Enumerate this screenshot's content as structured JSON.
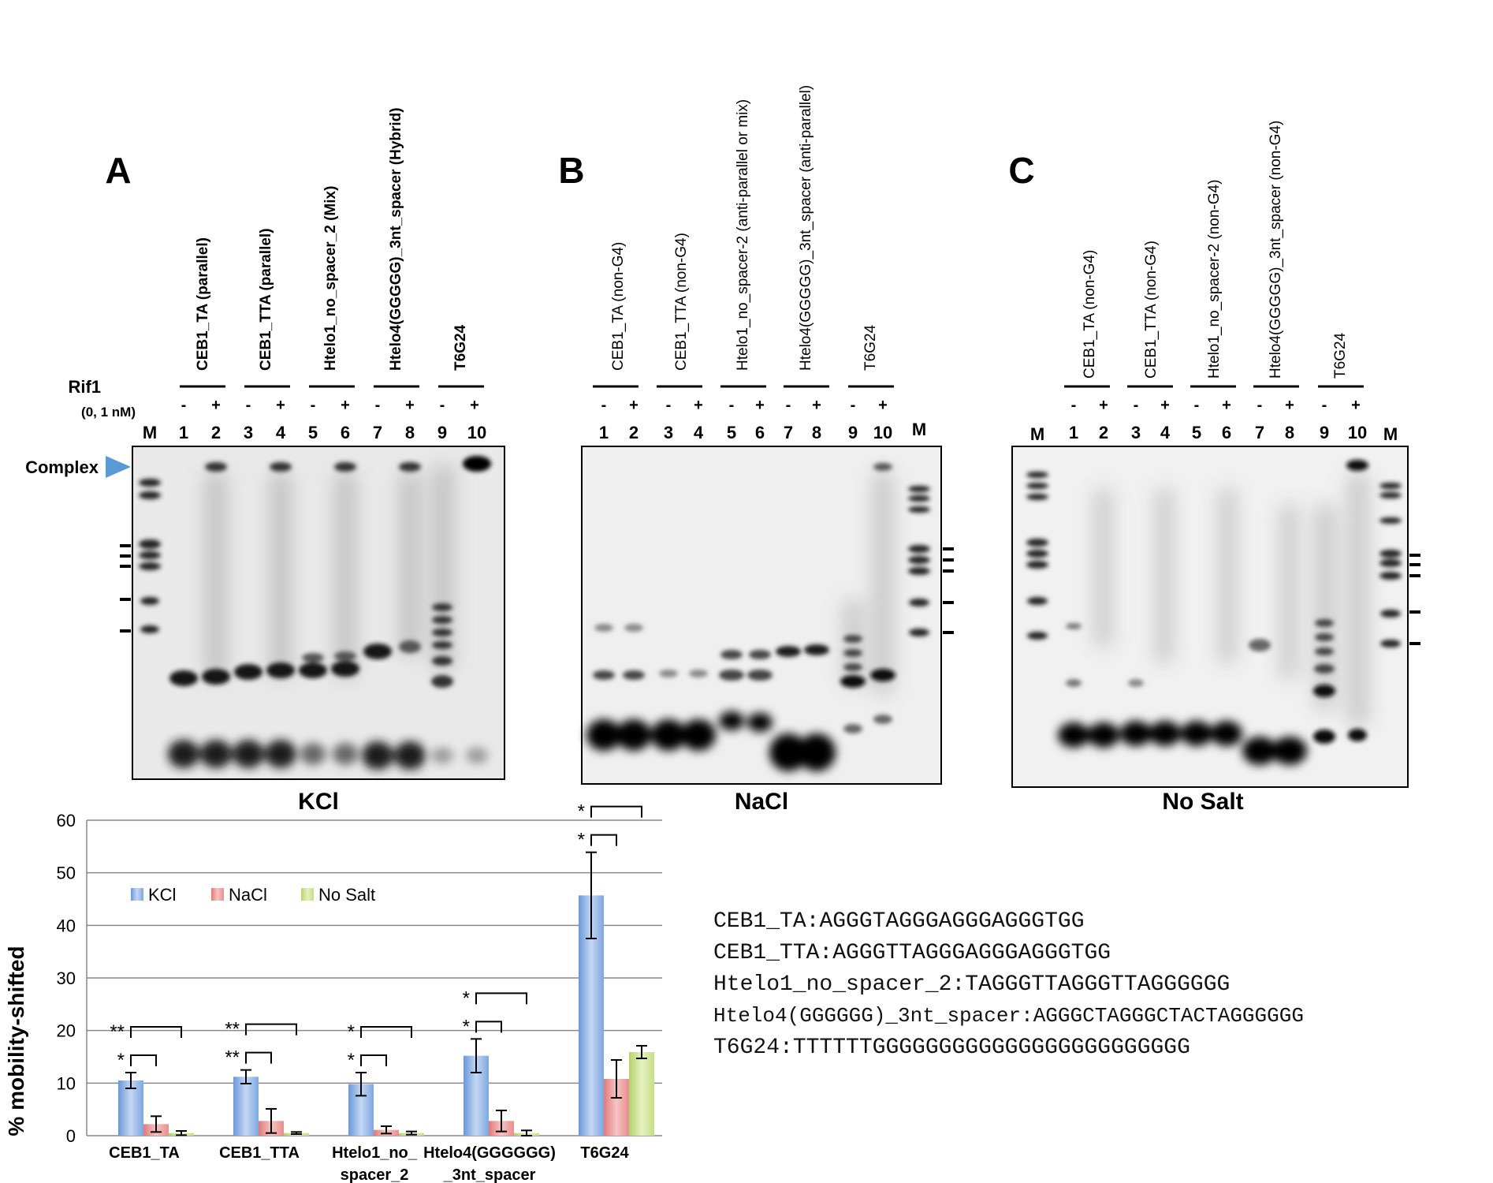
{
  "panels": [
    {
      "letter": "A",
      "salt": "KCl"
    },
    {
      "letter": "B",
      "salt": "NaCl"
    },
    {
      "letter": "C",
      "salt": "No Salt"
    }
  ],
  "rif1": {
    "label": "Rif1",
    "conc": "(0, 1 nM)"
  },
  "complex_label": "Complex",
  "marker": "M",
  "signs": [
    "-",
    "+"
  ],
  "lane_numbers": [
    "1",
    "2",
    "3",
    "4",
    "5",
    "6",
    "7",
    "8",
    "9",
    "10"
  ],
  "gel_labels": {
    "A": [
      "CEB1_TA (parallel)",
      "CEB1_TTA (parallel)",
      "Htelo1_no_spacer_2 (Mix)",
      "Htelo4(GGGGG)_3nt_spacer (Hybrid)",
      "T6G24"
    ],
    "B": [
      "CEB1_TA (non-G4)",
      "CEB1_TTA (non-G4)",
      "Htelo1_no_spacer-2 (anti-parallel or mix)",
      "Htelo4(GGGGG)_3nt_spacer (anti-parallel)",
      "T6G24"
    ],
    "C": [
      "CEB1_TA (non-G4)",
      "CEB1_TTA (non-G4)",
      "Htelo1_no_spacer-2 (non-G4)",
      "Htelo4(GGGGG)_3nt_spacer (non-G4)",
      "T6G24"
    ]
  },
  "sequences": [
    {
      "name": "CEB1_TA",
      "seq": "AGGGTAGGGAGGGAGGGTGG"
    },
    {
      "name": "CEB1_TTA",
      "seq": "AGGGTTAGGGAGGGAGGGTGG"
    },
    {
      "name": "Htelo1_no_spacer_2",
      "seq": "TAGGGTTAGGGTTAGGGGGG"
    },
    {
      "name": "Htelo4(GGGGGG)_3nt_spacer",
      "seq": "AGGGCTAGGGCTACTAGGGGGG"
    },
    {
      "name": "T6G24",
      "seq": "TTTTTTGGGGGGGGGGGGGGGGGGGGGGGG"
    }
  ],
  "chart_data": {
    "type": "bar",
    "ylabel": "% mobility-shifted",
    "ylim": [
      0,
      60
    ],
    "yticks": [
      0,
      10,
      20,
      30,
      40,
      50,
      60
    ],
    "categories": [
      "CEB1_TA",
      "CEB1_TTA",
      "Htelo1_no_ spacer_2",
      "Htelo4(GGGGGG) _3nt_spacer",
      "T6G24"
    ],
    "legend": "inside-top-left",
    "series": [
      {
        "name": "KCl",
        "color": "#7ea6e0",
        "values": [
          10.5,
          11.2,
          9.8,
          15.2,
          45.7
        ],
        "errors": [
          1.5,
          1.3,
          2.2,
          3.2,
          8.2
        ]
      },
      {
        "name": "NaCl",
        "color": "#e98e8c",
        "values": [
          2.2,
          2.8,
          1.1,
          2.8,
          10.8
        ],
        "errors": [
          1.5,
          2.3,
          0.7,
          2.0,
          3.6
        ]
      },
      {
        "name": "No Salt",
        "color": "#c7de86",
        "values": [
          0.5,
          0.5,
          0.5,
          0.5,
          15.9
        ],
        "errors": [
          0.4,
          0.2,
          0.3,
          0.5,
          1.2
        ]
      }
    ],
    "significance": [
      {
        "group": 0,
        "kcl_nacl": "*",
        "kcl_nosalt": "**"
      },
      {
        "group": 1,
        "kcl_nacl": "**",
        "kcl_nosalt": "**"
      },
      {
        "group": 2,
        "kcl_nacl": "*",
        "kcl_nosalt": "*"
      },
      {
        "group": 3,
        "kcl_nacl": "*",
        "kcl_nosalt": "*"
      },
      {
        "group": 4,
        "kcl_nacl": "*",
        "kcl_nosalt": "*"
      }
    ]
  }
}
